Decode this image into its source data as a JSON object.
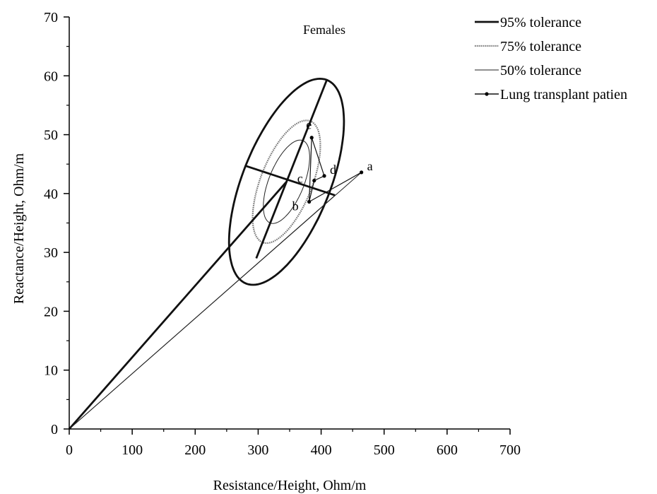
{
  "chart_data": {
    "type": "scatter",
    "title": "Females",
    "xlabel": "Resistance/Height, Ohm/m",
    "ylabel": "Reactance/Height, Ohm/m",
    "xlim": [
      0,
      700
    ],
    "ylim": [
      0,
      70
    ],
    "xticks": [
      0,
      100,
      200,
      300,
      400,
      500,
      600,
      700
    ],
    "yticks": [
      0,
      10,
      20,
      30,
      40,
      50,
      60,
      70
    ],
    "grid": false,
    "legend_position": "top-right",
    "center": [
      345,
      42
    ],
    "ellipses": [
      {
        "name": "95% tolerance",
        "style": "thick",
        "axis_a_end": [
          409,
          59.3
        ],
        "axis_b_end": [
          280,
          44.7
        ]
      },
      {
        "name": "75% tolerance",
        "style": "dotted",
        "axis_a_end": [
          383,
          52.3
        ],
        "axis_b_end": [
          307,
          43.6
        ]
      },
      {
        "name": "50% tolerance",
        "style": "thin",
        "axis_a_end": [
          371,
          49.0
        ],
        "axis_b_end": [
          319,
          43.1
        ]
      }
    ],
    "axis_lines": [
      {
        "from": [
          297,
          29.0
        ],
        "to": [
          409,
          59.3
        ],
        "style": "thick"
      },
      {
        "from": [
          280,
          44.7
        ],
        "to": [
          422,
          39.7
        ],
        "style": "thick"
      }
    ],
    "reference_lines": [
      {
        "from": [
          0,
          0
        ],
        "to": [
          345,
          42
        ],
        "style": "thick"
      },
      {
        "from": [
          0,
          0
        ],
        "to": [
          422,
          39.7
        ],
        "style": "thin"
      },
      {
        "from": [
          0,
          0
        ],
        "to": [
          464,
          43.6
        ],
        "style": "thin"
      }
    ],
    "series": [
      {
        "name": "Lung transplant patien",
        "points": [
          {
            "label": "a",
            "x": 464,
            "y": 43.6
          },
          {
            "label": "b",
            "x": 381,
            "y": 38.6
          },
          {
            "label": "c",
            "x": 389,
            "y": 42.2
          },
          {
            "label": "d",
            "x": 405,
            "y": 43.0
          },
          {
            "label": "e",
            "x": 385,
            "y": 49.5
          }
        ]
      }
    ],
    "legend": [
      {
        "label": "95% tolerance",
        "style": "thick"
      },
      {
        "label": "75% tolerance",
        "style": "dotted"
      },
      {
        "label": "50% tolerance",
        "style": "thin"
      },
      {
        "label": "Lung transplant patien",
        "style": "marker-line"
      }
    ]
  }
}
